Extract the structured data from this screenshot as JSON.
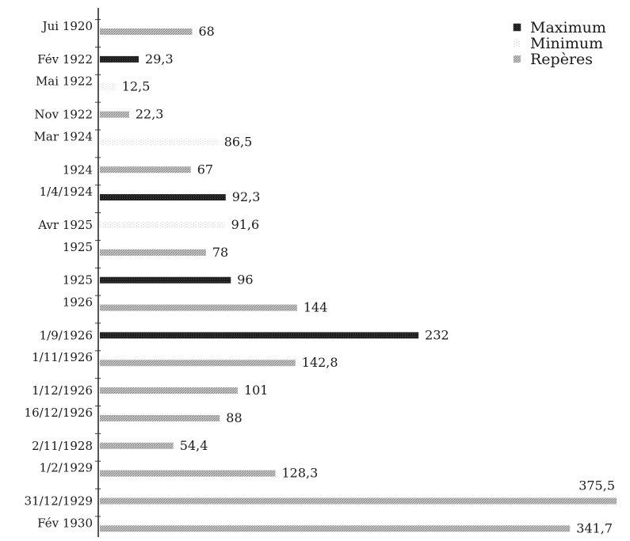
{
  "chart_data": {
    "type": "bar",
    "orientation": "horizontal",
    "xlim": [
      0,
      380
    ],
    "grid": false,
    "legend_position": "top-right",
    "series": [
      {
        "name": "Maximum",
        "color": "#2a2a2a"
      },
      {
        "name": "Minimum",
        "color": "#ececec"
      },
      {
        "name": "Repères",
        "color": "#a8a8a8"
      }
    ],
    "categories": [
      "Jui 1920",
      "Fév 1922",
      "Mai 1922",
      "Nov 1922",
      "Mar 1924",
      "1924",
      "1/4/1924",
      "Avr 1925",
      "1925",
      "1925",
      "1926",
      "1/9/1926",
      "1/11/1926",
      "1/12/1926",
      "16/12/1926",
      "2/11/1928",
      "1/2/1929",
      "31/12/1929",
      "Fév 1930"
    ],
    "bars": [
      {
        "category": "Jui 1920",
        "series": "Repères",
        "value": 68,
        "label": "68"
      },
      {
        "category": "Fév 1922",
        "series": "Maximum",
        "value": 29.3,
        "label": "29,3"
      },
      {
        "category": "Mai 1922",
        "series": "Minimum",
        "value": 12.5,
        "label": "12,5"
      },
      {
        "category": "Nov 1922",
        "series": "Repères",
        "value": 22.3,
        "label": "22,3"
      },
      {
        "category": "Mar 1924",
        "series": "Minimum",
        "value": 86.5,
        "label": "86,5"
      },
      {
        "category": "1924",
        "series": "Repères",
        "value": 67,
        "label": "67"
      },
      {
        "category": "1/4/1924",
        "series": "Maximum",
        "value": 92.3,
        "label": "92,3"
      },
      {
        "category": "Avr 1925",
        "series": "Minimum",
        "value": 91.6,
        "label": "91,6"
      },
      {
        "category": "1925",
        "series": "Repères",
        "value": 78,
        "label": "78"
      },
      {
        "category": "1925",
        "series": "Maximum",
        "value": 96,
        "label": "96"
      },
      {
        "category": "1926",
        "series": "Repères",
        "value": 144,
        "label": "144"
      },
      {
        "category": "1/9/1926",
        "series": "Maximum",
        "value": 232,
        "label": "232"
      },
      {
        "category": "1/11/1926",
        "series": "Repères",
        "value": 142.8,
        "label": "142,8"
      },
      {
        "category": "1/12/1926",
        "series": "Repères",
        "value": 101,
        "label": "101"
      },
      {
        "category": "16/12/1926",
        "series": "Repères",
        "value": 88,
        "label": "88"
      },
      {
        "category": "2/11/1928",
        "series": "Repères",
        "value": 54.4,
        "label": "54,4"
      },
      {
        "category": "1/2/1929",
        "series": "Repères",
        "value": 128.3,
        "label": "128,3"
      },
      {
        "category": "31/12/1929",
        "series": "Repères",
        "value": 375.5,
        "label": "375,5"
      },
      {
        "category": "Fév 1930",
        "series": "Repères",
        "value": 341.7,
        "label": "341,7"
      }
    ]
  }
}
